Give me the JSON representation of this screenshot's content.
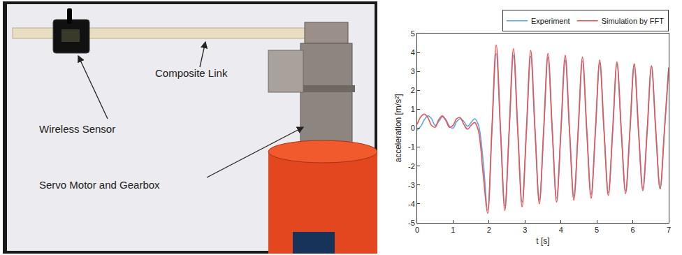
{
  "photo": {
    "labels": [
      "Composite Link",
      "Wireless Sensor",
      "Servo Motor and Gearbox"
    ]
  },
  "chart_data": {
    "type": "line",
    "x_label": "t [s]",
    "y_label": "acceleration [m/s²]",
    "xlim": [
      0,
      7
    ],
    "xticks": [
      0,
      1,
      2,
      3,
      4,
      5,
      6,
      7
    ],
    "ylim": [
      -5,
      5
    ],
    "yticks": [
      -5,
      -4,
      -3,
      -2,
      -1,
      0,
      1,
      2,
      3,
      4,
      5
    ],
    "grid": false,
    "legend": "top",
    "x": [
      0,
      0.1,
      0.2,
      0.3,
      0.4,
      0.5,
      0.6,
      0.7,
      0.8,
      0.9,
      1.0,
      1.1,
      1.2,
      1.3,
      1.4,
      1.5,
      1.6,
      1.7,
      1.84,
      1.96,
      2.08,
      2.2,
      2.32,
      2.44,
      2.56,
      2.68,
      2.8,
      2.92,
      3.04,
      3.16,
      3.28,
      3.4,
      3.52,
      3.64,
      3.76,
      3.88,
      4.0,
      4.12,
      4.24,
      4.36,
      4.48,
      4.6,
      4.72,
      4.84,
      4.96,
      5.08,
      5.2,
      5.32,
      5.44,
      5.56,
      5.68,
      5.8,
      5.92,
      6.04,
      6.16,
      6.28,
      6.4,
      6.52,
      6.64,
      6.76,
      6.88,
      7.0
    ],
    "series": [
      {
        "name": "Experiment",
        "color": "#5aa9e0",
        "values": [
          -0.1,
          0.1,
          0.45,
          0.65,
          0.5,
          0.15,
          0.35,
          0.6,
          0.45,
          0.1,
          0.0,
          0.35,
          0.5,
          0.35,
          0.1,
          0.3,
          0.5,
          0.2,
          -1.8,
          -4.35,
          -0.2,
          3.95,
          -0.2,
          -4.1,
          -0.2,
          3.85,
          -0.2,
          -3.9,
          -0.2,
          3.8,
          -0.2,
          -3.8,
          -0.2,
          3.75,
          -0.2,
          -3.7,
          -0.2,
          3.6,
          -0.2,
          -3.6,
          -0.2,
          3.55,
          -0.2,
          -3.5,
          -0.2,
          3.45,
          -0.2,
          -3.4,
          -0.2,
          3.4,
          -0.2,
          -3.3,
          -0.2,
          3.35,
          -0.2,
          -3.2,
          -0.2,
          3.25,
          -0.2,
          -3.2,
          -0.2,
          3.2
        ]
      },
      {
        "name": "Simulation by FFT",
        "color": "#f05050",
        "values": [
          0.2,
          0.6,
          0.75,
          0.55,
          0.15,
          0.05,
          0.45,
          0.65,
          0.4,
          0.05,
          0.15,
          0.5,
          0.55,
          0.2,
          -0.05,
          0.15,
          0.3,
          -0.1,
          -2.5,
          -4.5,
          0.0,
          4.4,
          -0.1,
          -4.35,
          -0.1,
          4.2,
          -0.1,
          -4.15,
          -0.1,
          4.1,
          -0.1,
          -4.0,
          -0.1,
          3.95,
          -0.1,
          -3.9,
          -0.1,
          3.85,
          -0.1,
          -3.8,
          -0.1,
          3.75,
          -0.1,
          -3.7,
          -0.1,
          3.6,
          -0.1,
          -3.55,
          -0.1,
          3.5,
          -0.1,
          -3.45,
          -0.1,
          3.4,
          -0.1,
          -3.3,
          -0.1,
          3.3,
          -0.1,
          -3.2,
          -0.1,
          3.2
        ]
      }
    ]
  }
}
